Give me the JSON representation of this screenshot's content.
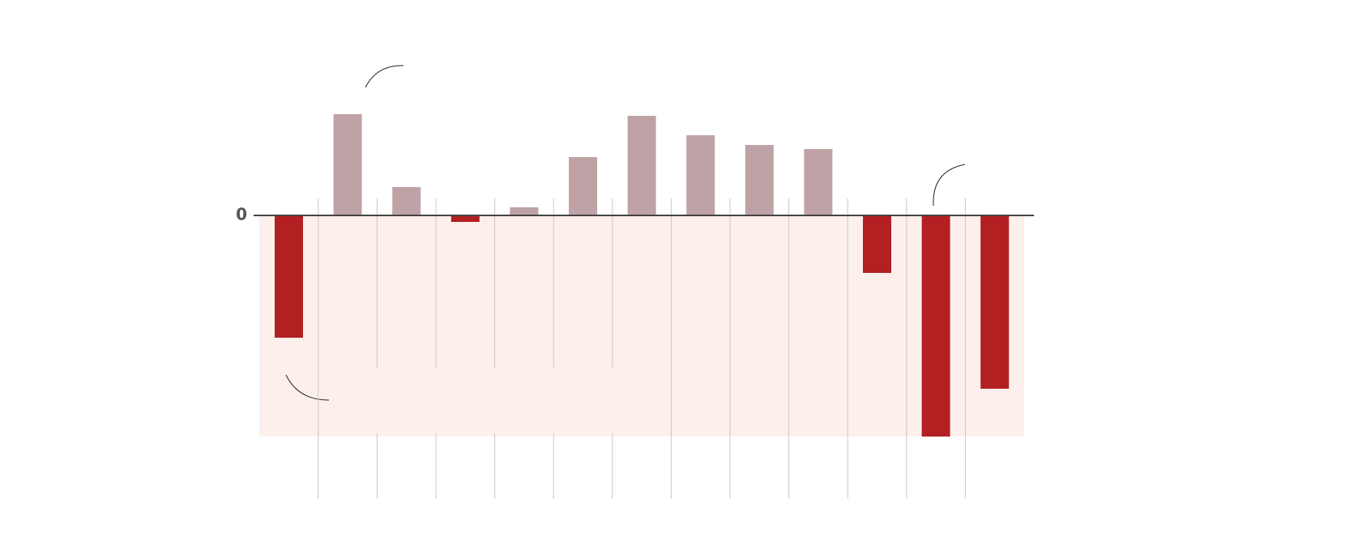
{
  "chart_data": {
    "type": "bar",
    "categories": [
      null,
      null,
      null,
      null,
      null,
      null,
      null,
      null,
      null,
      null,
      null,
      null,
      null
    ],
    "values": [
      -151,
      125,
      35,
      -8,
      10,
      72,
      123,
      99,
      87,
      82,
      -71,
      -273,
      -214
    ],
    "color": "#bfa2a5",
    "negative_color": "#b32022",
    "ylim": [
      -350,
      266
    ],
    "yticks": [
      0
    ],
    "grid": false
  }
}
